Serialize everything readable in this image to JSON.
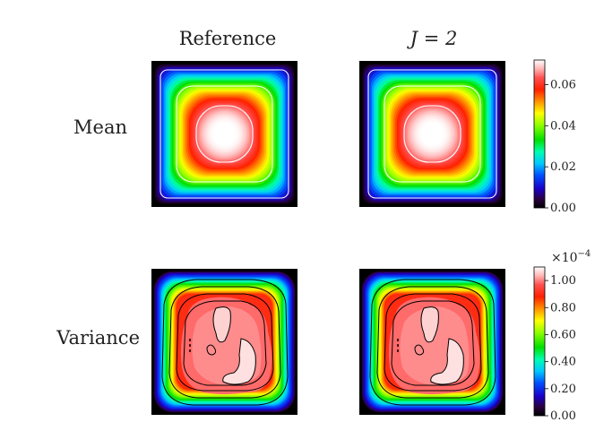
{
  "column_titles": [
    "Reference",
    "J = 2"
  ],
  "row_labels": [
    "Mean",
    "Variance"
  ],
  "chart_data": [
    {
      "type": "heatmap",
      "row": "Mean",
      "column": "Reference",
      "colormap": "gist_ncar-like (black → blue → cyan → green → yellow → red → white)",
      "contour_color": "#ffffff",
      "range": [
        0.0,
        0.07
      ],
      "center_peak": 0.07,
      "contour_levels": [
        0.012,
        0.036,
        0.06
      ]
    },
    {
      "type": "heatmap",
      "row": "Mean",
      "column": "J = 2",
      "colormap": "gist_ncar-like (black → blue → cyan → green → yellow → red → white)",
      "contour_color": "#ffffff",
      "range": [
        0.0,
        0.07
      ],
      "center_peak": 0.07,
      "contour_levels": [
        0.012,
        0.036,
        0.06
      ]
    },
    {
      "type": "heatmap",
      "row": "Variance",
      "column": "Reference",
      "colormap": "gist_ncar-like (black → blue → cyan → green → yellow → red → white)",
      "contour_color": "#000000",
      "range": [
        0.0,
        1.1
      ],
      "unit_scale": "×10^-4",
      "plateau_value": 1.0,
      "contour_levels": [
        0.4,
        0.6,
        0.8,
        1.0
      ]
    },
    {
      "type": "heatmap",
      "row": "Variance",
      "column": "J = 2",
      "colormap": "gist_ncar-like (black → blue → cyan → green → yellow → red → white)",
      "contour_color": "#000000",
      "range": [
        0.0,
        1.1
      ],
      "unit_scale": "×10^-4",
      "plateau_value": 1.0,
      "contour_levels": [
        0.4,
        0.6,
        0.8,
        1.0
      ]
    }
  ],
  "colorbars": [
    {
      "row": "Mean",
      "range": [
        0.0,
        0.072
      ],
      "ticks": [
        0.0,
        0.02,
        0.04,
        0.06
      ],
      "tick_labels": [
        "0.00",
        "0.02",
        "0.04",
        "0.06"
      ],
      "exponent_label": ""
    },
    {
      "row": "Variance",
      "range": [
        0.0,
        1.1
      ],
      "ticks": [
        0.0,
        0.2,
        0.4,
        0.6,
        0.8,
        1.0
      ],
      "tick_labels": [
        "0.00",
        "0.20",
        "0.40",
        "0.60",
        "0.80",
        "1.00"
      ],
      "exponent_label": "×10",
      "exponent_power": "−4"
    }
  ],
  "colormap_stops": [
    [
      0.0,
      "#000000"
    ],
    [
      0.06,
      "#2a0040"
    ],
    [
      0.13,
      "#1a00c8"
    ],
    [
      0.22,
      "#0050ff"
    ],
    [
      0.3,
      "#00c8ff"
    ],
    [
      0.38,
      "#00ffb0"
    ],
    [
      0.46,
      "#00e000"
    ],
    [
      0.56,
      "#90ff00"
    ],
    [
      0.64,
      "#ffff00"
    ],
    [
      0.72,
      "#ff9000"
    ],
    [
      0.8,
      "#ff2000"
    ],
    [
      0.88,
      "#ff5050"
    ],
    [
      0.94,
      "#ffb4b4"
    ],
    [
      1.0,
      "#ffffff"
    ]
  ]
}
